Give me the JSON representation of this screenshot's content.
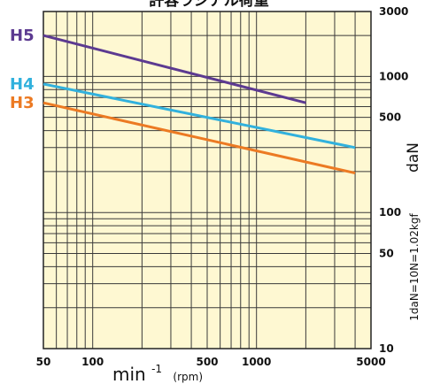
{
  "chart_data": {
    "type": "line",
    "title": "許容ラジアル荷重",
    "x_scale": "log",
    "y_scale": "log",
    "xlim": [
      50,
      5000
    ],
    "ylim": [
      10,
      3000
    ],
    "x_ticks": [
      50,
      100,
      500,
      1000,
      5000
    ],
    "x_tick_labels": [
      "50",
      "100",
      "500",
      "1000",
      "5000"
    ],
    "y_ticks": [
      10,
      50,
      100,
      500,
      1000,
      3000
    ],
    "y_tick_labels": [
      "10",
      "50",
      "100",
      "500",
      "1000",
      "3000"
    ],
    "xlabel_main": "min",
    "xlabel_sup": "-1",
    "xlabel_unit": "(rpm)",
    "ylabel": "daN",
    "note": "1daN=10N=1.02kgf",
    "grid": true,
    "background_color": "#fef8d2",
    "grid_color": "#3a3a3a",
    "series": [
      {
        "name": "H5",
        "color": "#5c3a91",
        "x": [
          50,
          2000
        ],
        "y": [
          2000,
          640
        ]
      },
      {
        "name": "H4",
        "color": "#31b1dd",
        "x": [
          50,
          4000
        ],
        "y": [
          880,
          300
        ]
      },
      {
        "name": "H3",
        "color": "#ec7a23",
        "x": [
          50,
          4000
        ],
        "y": [
          640,
          195
        ]
      }
    ]
  }
}
